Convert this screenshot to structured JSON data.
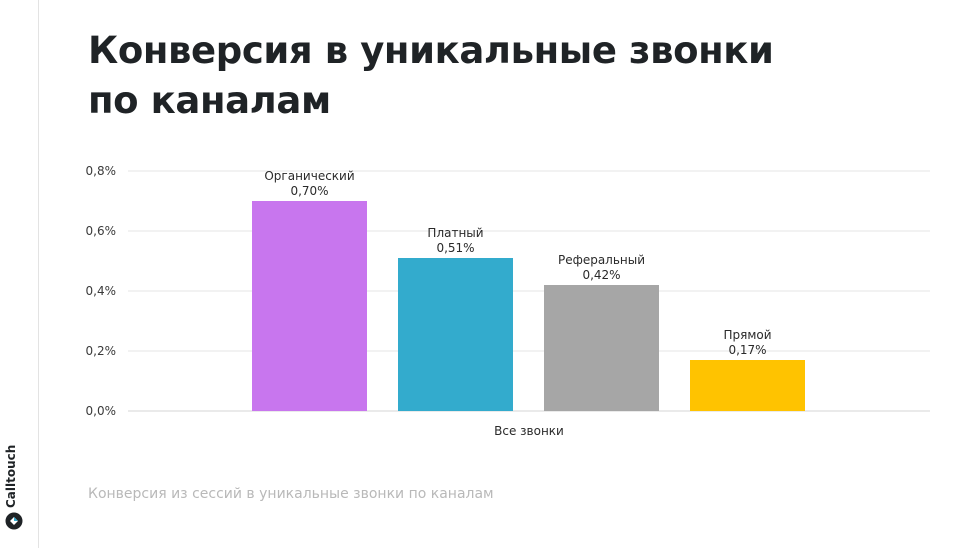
{
  "page": {
    "title_line1": "Конверсия в уникальные звонки",
    "title_line2": "по каналам",
    "caption": "Конверсия из сессий в уникальные звонки по каналам",
    "brand_name": "Calltouch"
  },
  "chart_data": {
    "type": "bar",
    "title": "Конверсия в уникальные звонки по каналам",
    "x_category": "Все звонки",
    "ylim": [
      0,
      0.8
    ],
    "yticks": [
      "0,0%",
      "0,2%",
      "0,4%",
      "0,6%",
      "0,8%"
    ],
    "ytick_values": [
      0,
      0.2,
      0.4,
      0.6,
      0.8
    ],
    "grid": true,
    "series": [
      {
        "name": "Органический",
        "value": 0.7,
        "label": "0,70%",
        "color": "#c876ee"
      },
      {
        "name": "Платный",
        "value": 0.51,
        "label": "0,51%",
        "color": "#33abcd"
      },
      {
        "name": "Реферальный",
        "value": 0.42,
        "label": "0,42%",
        "color": "#a6a6a6"
      },
      {
        "name": "Прямой",
        "value": 0.17,
        "label": "0,17%",
        "color": "#ffc300"
      }
    ]
  }
}
